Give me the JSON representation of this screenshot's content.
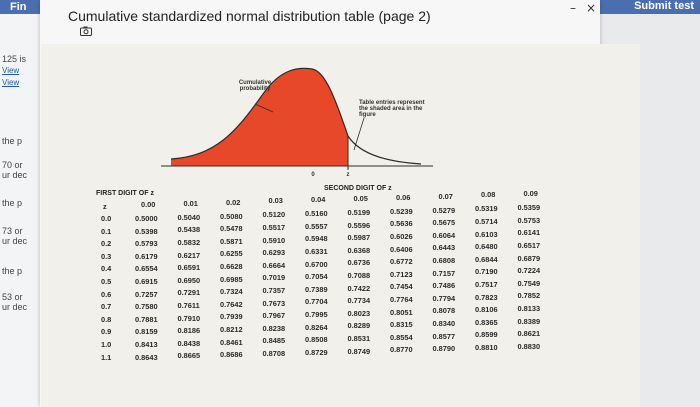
{
  "window": {
    "left_label": "Fin",
    "submit_label": "Submit test",
    "minimize": "–",
    "close": "×"
  },
  "background": {
    "lines": [
      "125 is",
      "View",
      "View",
      "the p",
      "70 or",
      "ur dec",
      "the p",
      "73 or",
      "ur dec",
      "the p",
      "53 or",
      "ur dec"
    ]
  },
  "page": {
    "title": "Cumulative standardized normal distribution table (page 2)"
  },
  "figure": {
    "curve_label": "Cumulative probability",
    "table_note": "Table entries represent the shaded area in the figure",
    "axis_zero": "0",
    "axis_z": "z"
  },
  "table": {
    "first_digit_header": "FIRST DIGIT OF z",
    "second_digit_header": "SECOND DIGIT OF z",
    "z_header": "z",
    "columns": [
      "0.00",
      "0.01",
      "0.02",
      "0.03",
      "0.04",
      "0.05",
      "0.06",
      "0.07",
      "0.08",
      "0.09"
    ],
    "rows": [
      {
        "z": "0.0",
        "v": [
          "0.5000",
          "0.5040",
          "0.5080",
          "0.5120",
          "0.5160",
          "0.5199",
          "0.5239",
          "0.5279",
          "0.5319",
          "0.5359"
        ]
      },
      {
        "z": "0.1",
        "v": [
          "0.5398",
          "0.5438",
          "0.5478",
          "0.5517",
          "0.5557",
          "0.5596",
          "0.5636",
          "0.5675",
          "0.5714",
          "0.5753"
        ]
      },
      {
        "z": "0.2",
        "v": [
          "0.5793",
          "0.5832",
          "0.5871",
          "0.5910",
          "0.5948",
          "0.5987",
          "0.6026",
          "0.6064",
          "0.6103",
          "0.6141"
        ]
      },
      {
        "z": "0.3",
        "v": [
          "0.6179",
          "0.6217",
          "0.6255",
          "0.6293",
          "0.6331",
          "0.6368",
          "0.6406",
          "0.6443",
          "0.6480",
          "0.6517"
        ]
      },
      {
        "z": "0.4",
        "v": [
          "0.6554",
          "0.6591",
          "0.6628",
          "0.6664",
          "0.6700",
          "0.6736",
          "0.6772",
          "0.6808",
          "0.6844",
          "0.6879"
        ]
      },
      {
        "z": "0.5",
        "v": [
          "0.6915",
          "0.6950",
          "0.6985",
          "0.7019",
          "0.7054",
          "0.7088",
          "0.7123",
          "0.7157",
          "0.7190",
          "0.7224"
        ]
      },
      {
        "z": "0.6",
        "v": [
          "0.7257",
          "0.7291",
          "0.7324",
          "0.7357",
          "0.7389",
          "0.7422",
          "0.7454",
          "0.7486",
          "0.7517",
          "0.7549"
        ]
      },
      {
        "z": "0.7",
        "v": [
          "0.7580",
          "0.7611",
          "0.7642",
          "0.7673",
          "0.7704",
          "0.7734",
          "0.7764",
          "0.7794",
          "0.7823",
          "0.7852"
        ]
      },
      {
        "z": "0.8",
        "v": [
          "0.7881",
          "0.7910",
          "0.7939",
          "0.7967",
          "0.7995",
          "0.8023",
          "0.8051",
          "0.8078",
          "0.8106",
          "0.8133"
        ]
      },
      {
        "z": "0.9",
        "v": [
          "0.8159",
          "0.8186",
          "0.8212",
          "0.8238",
          "0.8264",
          "0.8289",
          "0.8315",
          "0.8340",
          "0.8365",
          "0.8389"
        ]
      },
      {
        "z": "1.0",
        "v": [
          "0.8413",
          "0.8438",
          "0.8461",
          "0.8485",
          "0.8508",
          "0.8531",
          "0.8554",
          "0.8577",
          "0.8599",
          "0.8621"
        ]
      },
      {
        "z": "1.1",
        "v": [
          "0.8643",
          "0.8665",
          "0.8686",
          "0.8708",
          "0.8729",
          "0.8749",
          "0.8770",
          "0.8790",
          "0.8810",
          "0.8830"
        ]
      }
    ]
  },
  "colors": {
    "shade": "#e8482a",
    "topbar": "#4a6fb0"
  }
}
